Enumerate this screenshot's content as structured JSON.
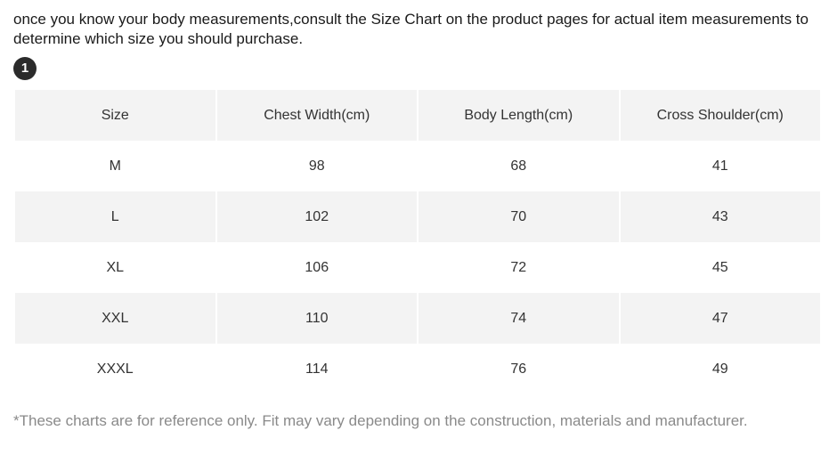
{
  "intro_text": "once you know your body measurements,consult the Size Chart on the product pages for actual item measurements to determine which size you should purchase.",
  "badge_number": "1",
  "table": {
    "headers": [
      "Size",
      "Chest Width(cm)",
      "Body Length(cm)",
      "Cross Shoulder(cm)"
    ],
    "rows": [
      [
        "M",
        "98",
        "68",
        "41"
      ],
      [
        "L",
        "102",
        "70",
        "43"
      ],
      [
        "XL",
        "106",
        "72",
        "45"
      ],
      [
        "XXL",
        "110",
        "74",
        "47"
      ],
      [
        "XXXL",
        "114",
        "76",
        "49"
      ]
    ]
  },
  "footnote": "*These charts are for reference only. Fit may vary depending on the construction, materials and manufacturer."
}
